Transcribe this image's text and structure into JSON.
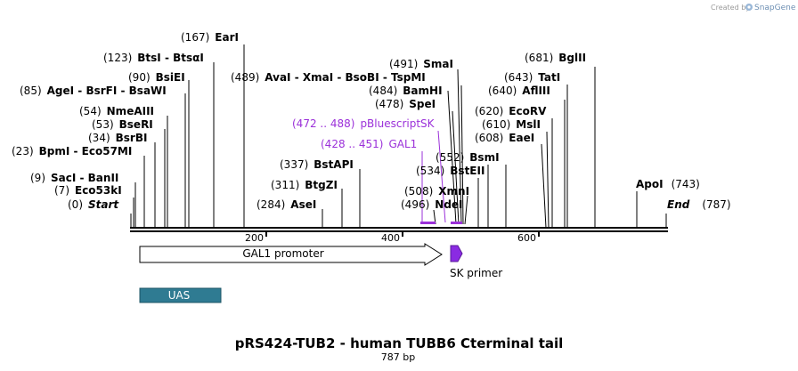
{
  "credit": "Created by",
  "brand": "SnapGene",
  "title": "pRS424-TUB2 - human TUBB6 Cterminal tail",
  "length_label": "787 bp",
  "ruler": [
    "200",
    "400",
    "600"
  ],
  "sites": [
    {
      "num": "(0)",
      "names": "Start",
      "pos": 0,
      "italic": true
    },
    {
      "num": "(7)",
      "names": "Eco53kI",
      "pos": 7
    },
    {
      "num": "(9)",
      "names": "SacI  - BanII",
      "pos": 9
    },
    {
      "num": "(23)",
      "names": "BpmI  - Eco57MI",
      "pos": 23
    },
    {
      "num": "(34)",
      "names": "BsrBI",
      "pos": 34
    },
    {
      "num": "(53)",
      "names": "BseRI",
      "pos": 53
    },
    {
      "num": "(54)",
      "names": "NmeAIII",
      "pos": 54
    },
    {
      "num": "(85)",
      "names": "AgeI  - BsrFI  - BsaWI",
      "pos": 85
    },
    {
      "num": "(90)",
      "names": "BsiEI",
      "pos": 90
    },
    {
      "num": "(123)",
      "names": "BtsI  - BtsαI",
      "pos": 123
    },
    {
      "num": "(167)",
      "names": "EarI",
      "pos": 167
    },
    {
      "num": "(284)",
      "names": "AseI",
      "pos": 284
    },
    {
      "num": "(311)",
      "names": "BtgZI",
      "pos": 311
    },
    {
      "num": "(337)",
      "names": "BstAPI",
      "pos": 337
    },
    {
      "num": "(489)",
      "names": "AvaI  - XmaI  - BsoBI  - TspMI",
      "pos": 489
    },
    {
      "num": "(491)",
      "names": "SmaI",
      "pos": 491
    },
    {
      "num": "(484)",
      "names": "BamHI",
      "pos": 484
    },
    {
      "num": "(478)",
      "names": "SpeI",
      "pos": 478
    },
    {
      "num": "(496)",
      "names": "NdeI",
      "pos": 496
    },
    {
      "num": "(508)",
      "names": "XmnI",
      "pos": 508
    },
    {
      "num": "(534)",
      "names": "BstEII",
      "pos": 534
    },
    {
      "num": "(552)",
      "names": "BsmI",
      "pos": 552
    },
    {
      "num": "(608)",
      "names": "EaeI",
      "pos": 608
    },
    {
      "num": "(610)",
      "names": "MslI",
      "pos": 610
    },
    {
      "num": "(620)",
      "names": "EcoRV",
      "pos": 620
    },
    {
      "num": "(640)",
      "names": "AflIII",
      "pos": 640
    },
    {
      "num": "(643)",
      "names": "TatI",
      "pos": 643
    },
    {
      "num": "(681)",
      "names": "BglII",
      "pos": 681
    },
    {
      "num": "(743)",
      "names": "ApoI",
      "pos": 743
    },
    {
      "num": "(787)",
      "names": "End",
      "pos": 787,
      "italic": true
    }
  ],
  "primer_bind": [
    {
      "range": "(472 .. 488)",
      "name": "pBluescriptSK",
      "start": 472,
      "end": 488
    },
    {
      "range": "(428 .. 451)",
      "name": "GAL1",
      "start": 428,
      "end": 451
    }
  ],
  "features": {
    "gal1_promoter": "GAL1 promoter",
    "sk_primer": "SK primer",
    "uas": "UAS"
  },
  "colors": {
    "purple": "#9b30d9",
    "uas_fill": "#2f7b92",
    "sk_fill": "#8a2be2"
  }
}
